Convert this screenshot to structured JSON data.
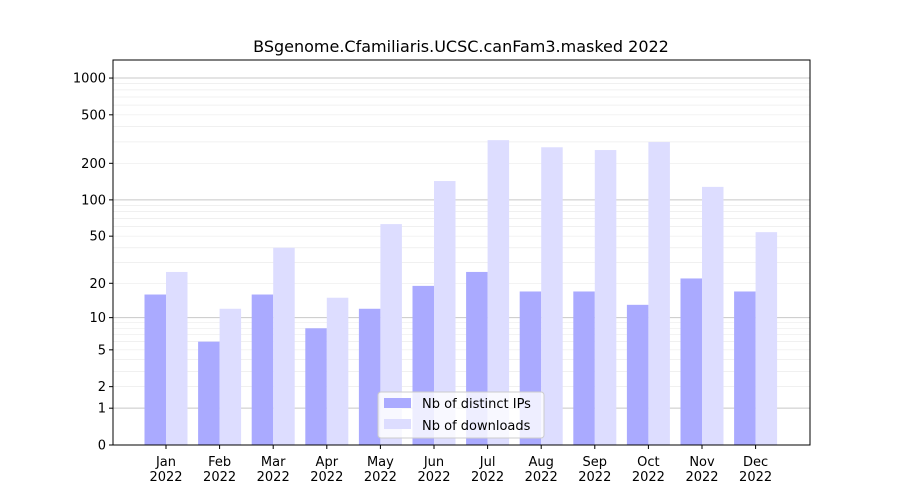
{
  "chart_data": {
    "type": "bar",
    "title": "BSgenome.Cfamiliaris.UCSC.canFam3.masked 2022",
    "xlabel": "",
    "ylabel": "",
    "yscale": "log(1+y)",
    "ylim": [
      0,
      1300
    ],
    "yticks": [
      0,
      1,
      2,
      5,
      10,
      20,
      50,
      100,
      200,
      500,
      1000
    ],
    "categories": [
      "Jan\n2022",
      "Feb\n2022",
      "Mar\n2022",
      "Apr\n2022",
      "May\n2022",
      "Jun\n2022",
      "Jul\n2022",
      "Aug\n2022",
      "Sep\n2022",
      "Oct\n2022",
      "Nov\n2022",
      "Dec\n2022"
    ],
    "series": [
      {
        "name": "Nb of distinct IPs",
        "color": "#aaaaff",
        "values": [
          16,
          6,
          16,
          8,
          12,
          19,
          25,
          17,
          17,
          13,
          22,
          17
        ]
      },
      {
        "name": "Nb of downloads",
        "color": "#ddddff",
        "values": [
          25,
          12,
          40,
          15,
          63,
          143,
          310,
          271,
          257,
          299,
          128,
          54
        ]
      }
    ],
    "grid": true,
    "legend": "bottom-center"
  }
}
